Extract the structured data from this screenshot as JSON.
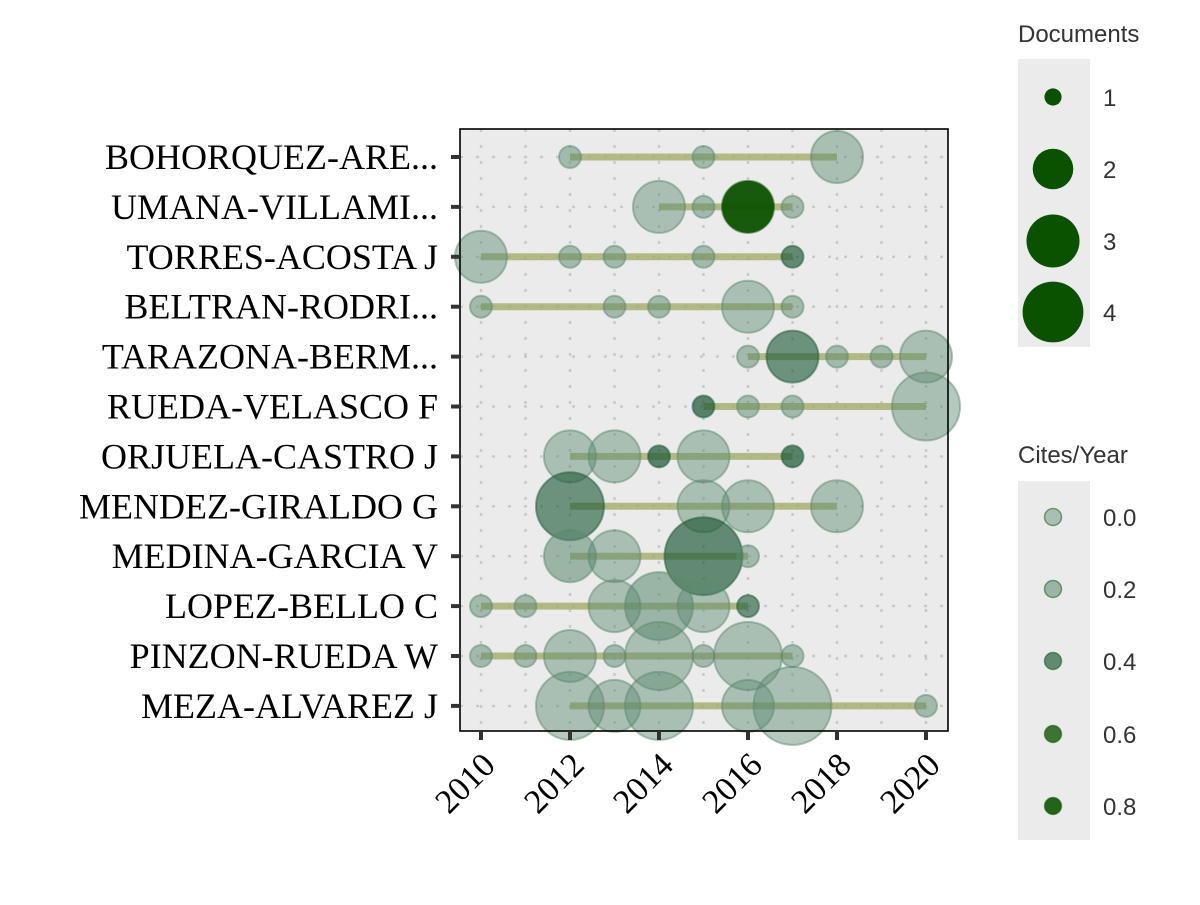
{
  "chart_data": {
    "type": "scatter",
    "x_range": [
      2010,
      2020
    ],
    "x_ticks": [
      2010,
      2012,
      2014,
      2016,
      2018,
      2020
    ],
    "x_tick_labels": [
      "2010",
      "2012",
      "2014",
      "2016",
      "2018",
      "2020"
    ],
    "grid": "dotted",
    "panel_background": "#EBEBEB",
    "colors": {
      "dark": "#0B5200",
      "mid": "#1E5A37",
      "light": "#5B8A6E",
      "segment": "#A4AD6A"
    },
    "authors": [
      {
        "name": "BOHORQUEZ-ARE...",
        "first_year": 2012,
        "last_year": 2018,
        "points": [
          {
            "year": 2012,
            "docs": 1,
            "cites": 0.1
          },
          {
            "year": 2015,
            "docs": 1,
            "cites": 0.1
          },
          {
            "year": 2018,
            "docs": 2,
            "cites": 0.0
          }
        ]
      },
      {
        "name": "UMANA-VILLAMI...",
        "first_year": 2014,
        "last_year": 2017,
        "points": [
          {
            "year": 2014,
            "docs": 2,
            "cites": 0.0
          },
          {
            "year": 2015,
            "docs": 1,
            "cites": 0.1
          },
          {
            "year": 2016,
            "docs": 2,
            "cites": 0.9
          },
          {
            "year": 2017,
            "docs": 1,
            "cites": 0.1
          }
        ]
      },
      {
        "name": "TORRES-ACOSTA J",
        "first_year": 2010,
        "last_year": 2017,
        "points": [
          {
            "year": 2010,
            "docs": 2,
            "cites": 0.0
          },
          {
            "year": 2012,
            "docs": 1,
            "cites": 0.1
          },
          {
            "year": 2013,
            "docs": 1,
            "cites": 0.1
          },
          {
            "year": 2015,
            "docs": 1,
            "cites": 0.1
          },
          {
            "year": 2017,
            "docs": 1,
            "cites": 0.4
          }
        ]
      },
      {
        "name": "BELTRAN-RODRI...",
        "first_year": 2010,
        "last_year": 2017,
        "points": [
          {
            "year": 2010,
            "docs": 1,
            "cites": 0.1
          },
          {
            "year": 2013,
            "docs": 1,
            "cites": 0.1
          },
          {
            "year": 2014,
            "docs": 1,
            "cites": 0.1
          },
          {
            "year": 2016,
            "docs": 2,
            "cites": 0.0
          },
          {
            "year": 2017,
            "docs": 1,
            "cites": 0.1
          }
        ]
      },
      {
        "name": "TARAZONA-BERM...",
        "first_year": 2016,
        "last_year": 2020,
        "points": [
          {
            "year": 2016,
            "docs": 1,
            "cites": 0.1
          },
          {
            "year": 2017,
            "docs": 2,
            "cites": 0.3
          },
          {
            "year": 2018,
            "docs": 1,
            "cites": 0.1
          },
          {
            "year": 2019,
            "docs": 1,
            "cites": 0.1
          },
          {
            "year": 2020,
            "docs": 2,
            "cites": 0.0
          }
        ]
      },
      {
        "name": "RUEDA-VELASCO F",
        "first_year": 2015,
        "last_year": 2020,
        "points": [
          {
            "year": 2015,
            "docs": 1,
            "cites": 0.5
          },
          {
            "year": 2016,
            "docs": 1,
            "cites": 0.1
          },
          {
            "year": 2017,
            "docs": 1,
            "cites": 0.1
          },
          {
            "year": 2020,
            "docs": 3,
            "cites": 0.0
          }
        ]
      },
      {
        "name": "ORJUELA-CASTRO J",
        "first_year": 2012,
        "last_year": 2017,
        "points": [
          {
            "year": 2012,
            "docs": 2,
            "cites": 0.0
          },
          {
            "year": 2013,
            "docs": 2,
            "cites": 0.0
          },
          {
            "year": 2014,
            "docs": 1,
            "cites": 0.5
          },
          {
            "year": 2015,
            "docs": 2,
            "cites": 0.0
          },
          {
            "year": 2017,
            "docs": 1,
            "cites": 0.5
          }
        ]
      },
      {
        "name": "MENDEZ-GIRALDO G",
        "first_year": 2012,
        "last_year": 2018,
        "points": [
          {
            "year": 2012,
            "docs": 3,
            "cites": 0.3
          },
          {
            "year": 2015,
            "docs": 2,
            "cites": 0.0
          },
          {
            "year": 2016,
            "docs": 2,
            "cites": 0.0
          },
          {
            "year": 2018,
            "docs": 2,
            "cites": 0.0
          }
        ]
      },
      {
        "name": "MEDINA-GARCIA V",
        "first_year": 2012,
        "last_year": 2016,
        "points": [
          {
            "year": 2012,
            "docs": 2,
            "cites": 0.2
          },
          {
            "year": 2013,
            "docs": 2,
            "cites": 0.0
          },
          {
            "year": 2015,
            "docs": 4,
            "cites": 0.4
          },
          {
            "year": 2016,
            "docs": 1,
            "cites": 0.1
          }
        ]
      },
      {
        "name": "LOPEZ-BELLO C",
        "first_year": 2010,
        "last_year": 2016,
        "points": [
          {
            "year": 2010,
            "docs": 1,
            "cites": 0.1
          },
          {
            "year": 2011,
            "docs": 1,
            "cites": 0.1
          },
          {
            "year": 2013,
            "docs": 2,
            "cites": 0.0
          },
          {
            "year": 2014,
            "docs": 3,
            "cites": 0.2
          },
          {
            "year": 2015,
            "docs": 2,
            "cites": 0.0
          },
          {
            "year": 2016,
            "docs": 1,
            "cites": 0.3
          }
        ]
      },
      {
        "name": "PINZON-RUEDA W",
        "first_year": 2010,
        "last_year": 2017,
        "points": [
          {
            "year": 2010,
            "docs": 1,
            "cites": 0.1
          },
          {
            "year": 2011,
            "docs": 1,
            "cites": 0.1
          },
          {
            "year": 2012,
            "docs": 2,
            "cites": 0.0
          },
          {
            "year": 2013,
            "docs": 1,
            "cites": 0.1
          },
          {
            "year": 2014,
            "docs": 3,
            "cites": 0.0
          },
          {
            "year": 2015,
            "docs": 1,
            "cites": 0.1
          },
          {
            "year": 2016,
            "docs": 3,
            "cites": 0.0
          },
          {
            "year": 2017,
            "docs": 1,
            "cites": 0.1
          }
        ]
      },
      {
        "name": "MEZA-ALVAREZ J",
        "first_year": 2012,
        "last_year": 2020,
        "points": [
          {
            "year": 2012,
            "docs": 3,
            "cites": 0.0
          },
          {
            "year": 2013,
            "docs": 2,
            "cites": 0.0
          },
          {
            "year": 2014,
            "docs": 3,
            "cites": 0.0
          },
          {
            "year": 2016,
            "docs": 2,
            "cites": 0.0
          },
          {
            "year": 2017,
            "docs": 4,
            "cites": 0.0
          },
          {
            "year": 2020,
            "docs": 1,
            "cites": 0.1
          }
        ]
      }
    ],
    "legend_size": {
      "title": "Documents",
      "placement": "right",
      "items": [
        {
          "label": "1",
          "value": 1
        },
        {
          "label": "2",
          "value": 2
        },
        {
          "label": "3",
          "value": 3
        },
        {
          "label": "4",
          "value": 4
        }
      ]
    },
    "legend_alpha": {
      "title": "Cites/Year",
      "placement": "right",
      "items": [
        {
          "label": "0.0",
          "value": 0.0
        },
        {
          "label": "0.2",
          "value": 0.2
        },
        {
          "label": "0.4",
          "value": 0.4
        },
        {
          "label": "0.6",
          "value": 0.6
        },
        {
          "label": "0.8",
          "value": 0.8
        }
      ]
    }
  }
}
